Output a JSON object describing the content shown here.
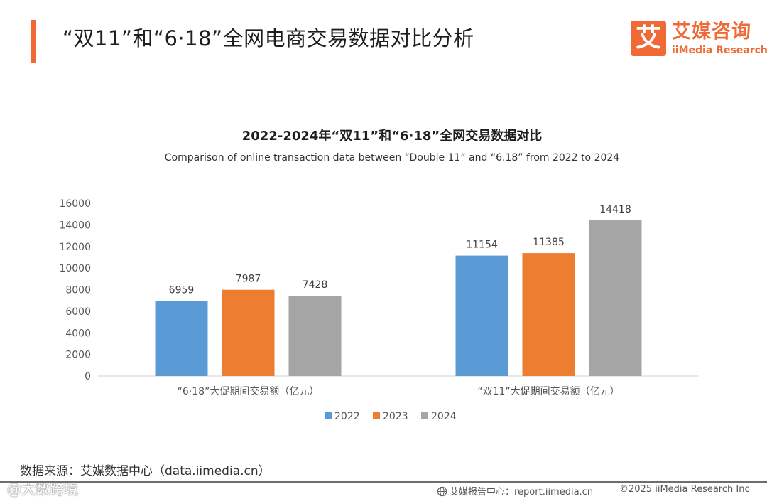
{
  "header": {
    "title": "“双11”和“6·18”全网电商交易数据对比分析",
    "logo_mark": "艾",
    "logo_name": "艾媒咨询",
    "logo_en": "iiMedia Research"
  },
  "chart_data": {
    "type": "bar",
    "title": "2022-2024年“双11”和“6·18”全网交易数据对比",
    "subtitle": "Comparison of online transaction data between “Double 11” and “6.18” from 2022 to 2024",
    "categories": [
      "“6·18”大促期间交易额（亿元）",
      "“双11”大促期间交易额（亿元）"
    ],
    "series": [
      {
        "name": "2022",
        "color": "#5b9bd5",
        "values": [
          6959,
          11154
        ]
      },
      {
        "name": "2023",
        "color": "#ed7d31",
        "values": [
          7987,
          11385
        ]
      },
      {
        "name": "2024",
        "color": "#a5a5a5",
        "values": [
          7428,
          14418
        ]
      }
    ],
    "yticks": [
      0,
      2000,
      4000,
      6000,
      8000,
      10000,
      12000,
      14000,
      16000
    ],
    "ylim": [
      0,
      16000
    ],
    "xlabel": "",
    "ylabel": "",
    "grid": false,
    "legend_position": "bottom"
  },
  "footer": {
    "source": "数据来源：艾媒数据中心（data.iimedia.cn）",
    "watermark": "@大数跨境",
    "site": "艾媒报告中心：report.iimedia.cn",
    "copyright": "©2025  iiMedia Research  Inc"
  }
}
